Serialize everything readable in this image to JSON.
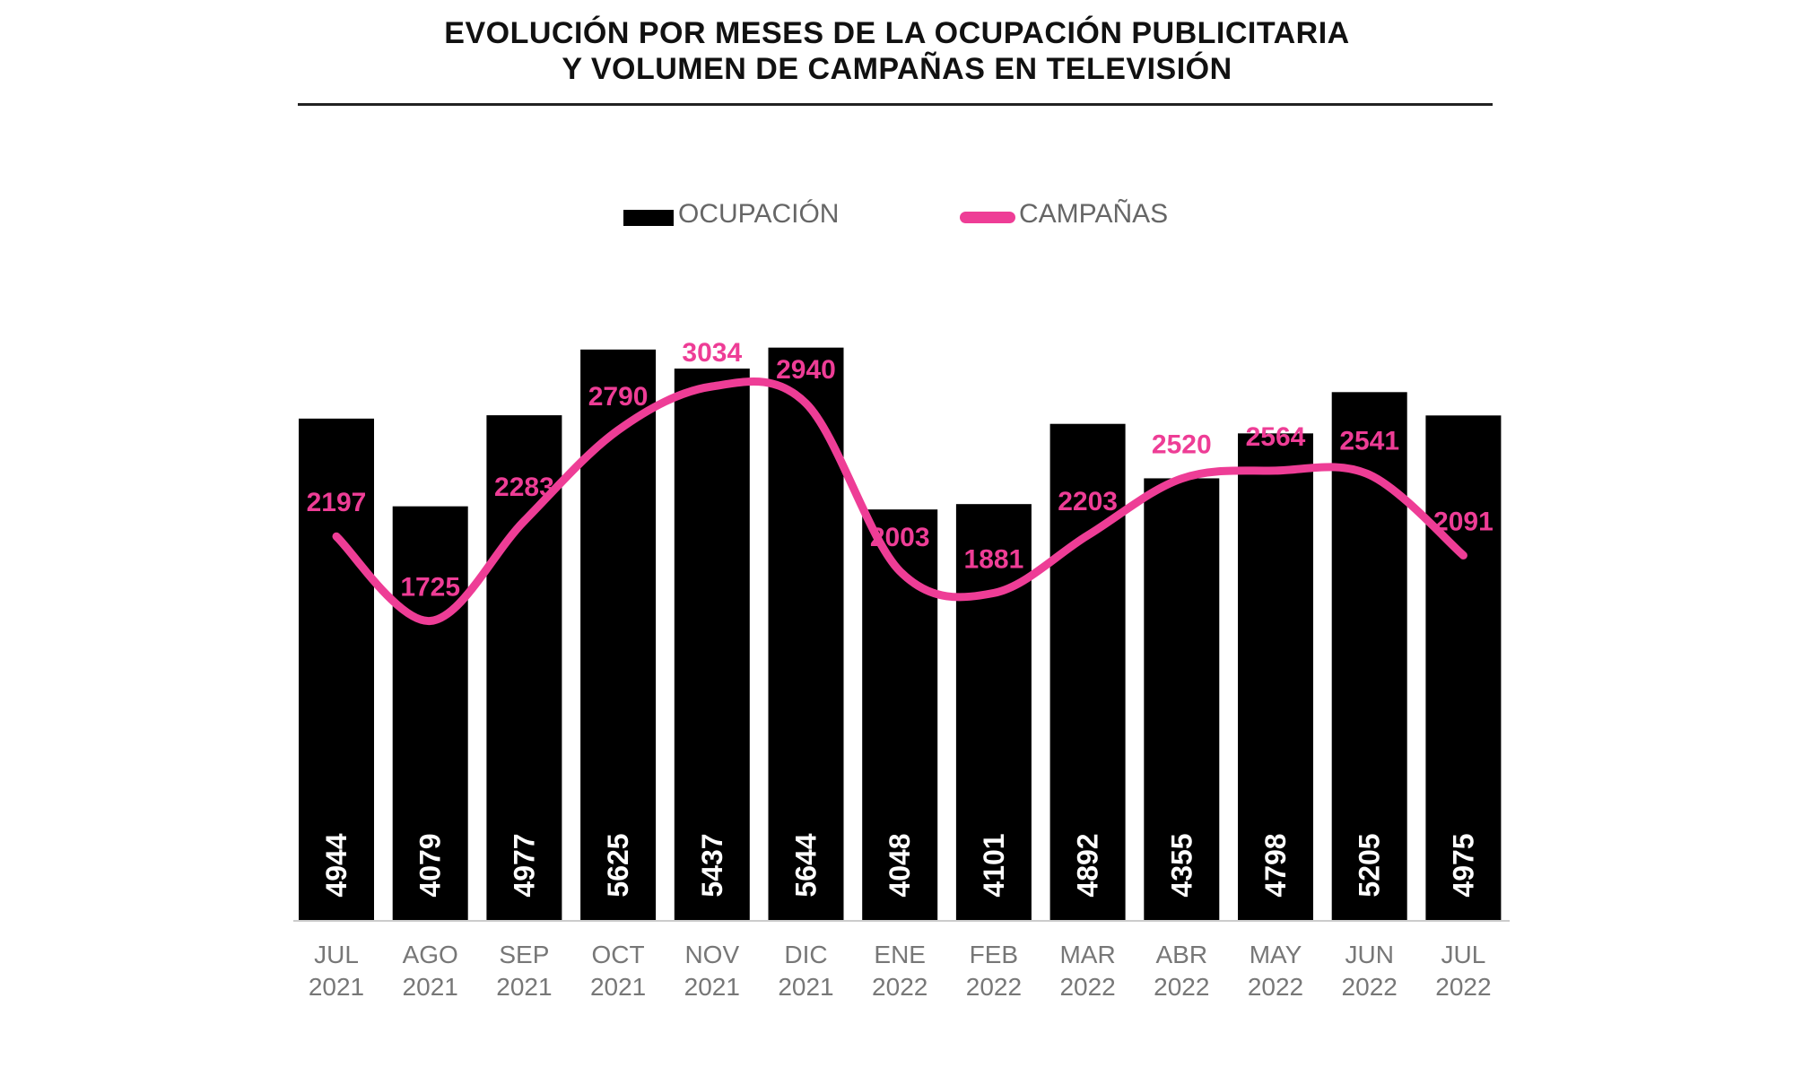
{
  "chart_data": {
    "type": "bar",
    "title": [
      "EVOLUCIÓN POR MESES DE LA OCUPACIÓN PUBLICITARIA",
      "Y VOLUMEN DE CAMPAÑAS EN TELEVISIÓN"
    ],
    "legend": {
      "placement": "top-center",
      "entries": [
        "OCUPACIÓN",
        "CAMPAÑAS"
      ]
    },
    "categories": [
      [
        "JUL",
        "2021"
      ],
      [
        "AGO",
        "2021"
      ],
      [
        "SEP",
        "2021"
      ],
      [
        "OCT",
        "2021"
      ],
      [
        "NOV",
        "2021"
      ],
      [
        "DIC",
        "2021"
      ],
      [
        "ENE",
        "2022"
      ],
      [
        "FEB",
        "2022"
      ],
      [
        "MAR",
        "2022"
      ],
      [
        "ABR",
        "2022"
      ],
      [
        "MAY",
        "2022"
      ],
      [
        "JUN",
        "2022"
      ],
      [
        "JUL",
        "2022"
      ]
    ],
    "series": [
      {
        "name": "OCUPACIÓN",
        "type": "bar",
        "color": "#000000",
        "values": [
          4944,
          4079,
          4977,
          5625,
          5437,
          5644,
          4048,
          4101,
          4892,
          4355,
          4798,
          5205,
          4975
        ]
      },
      {
        "name": "CAMPAÑAS",
        "type": "line",
        "color": "#ee3d96",
        "values": [
          2197,
          1725,
          2283,
          2790,
          3034,
          2940,
          2003,
          1881,
          2203,
          2520,
          2564,
          2541,
          2091
        ]
      }
    ],
    "grid": false
  }
}
